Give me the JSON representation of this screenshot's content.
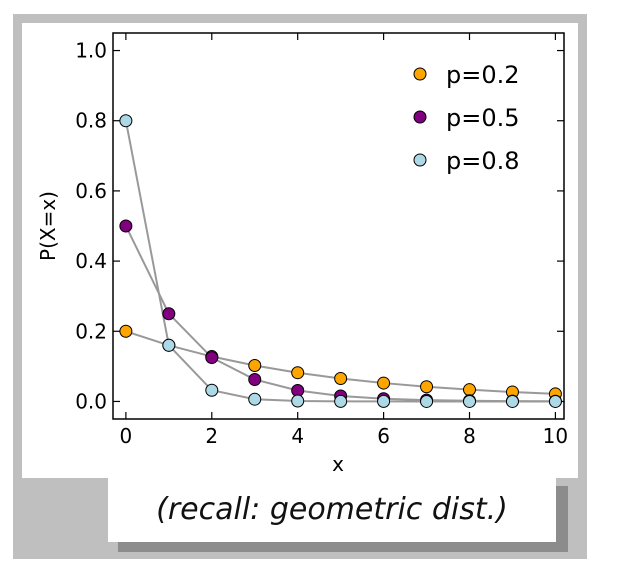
{
  "chart_data": {
    "type": "line",
    "title": "",
    "xlabel": "x",
    "ylabel": "P(X=x)",
    "xlim": [
      -0.3,
      10.2
    ],
    "ylim": [
      -0.05,
      1.05
    ],
    "xticks": [
      0,
      2,
      4,
      6,
      8,
      10
    ],
    "yticks": [
      0.0,
      0.2,
      0.4,
      0.6,
      0.8,
      1.0
    ],
    "ytick_labels": [
      "0.0",
      "0.2",
      "0.4",
      "0.6",
      "0.8",
      "1.0"
    ],
    "grid": false,
    "legend_position": "top-right",
    "line_color": "#999999",
    "x": [
      0,
      1,
      2,
      3,
      4,
      5,
      6,
      7,
      8,
      9,
      10
    ],
    "series": [
      {
        "name": "p=0.2",
        "color": "#ffa500",
        "values": [
          0.2,
          0.16,
          0.128,
          0.1024,
          0.0819,
          0.0655,
          0.0524,
          0.0419,
          0.0336,
          0.0268,
          0.0215
        ]
      },
      {
        "name": "p=0.5",
        "color": "#800080",
        "values": [
          0.5,
          0.25,
          0.125,
          0.0625,
          0.0313,
          0.0156,
          0.0078,
          0.0039,
          0.002,
          0.001,
          0.0005
        ]
      },
      {
        "name": "p=0.8",
        "color": "#add8e6",
        "values": [
          0.8,
          0.16,
          0.032,
          0.0064,
          0.0013,
          0.0003,
          0.0001,
          0.0,
          0.0,
          0.0,
          0.0
        ]
      }
    ]
  },
  "caption": "(recall: geometric dist.)"
}
